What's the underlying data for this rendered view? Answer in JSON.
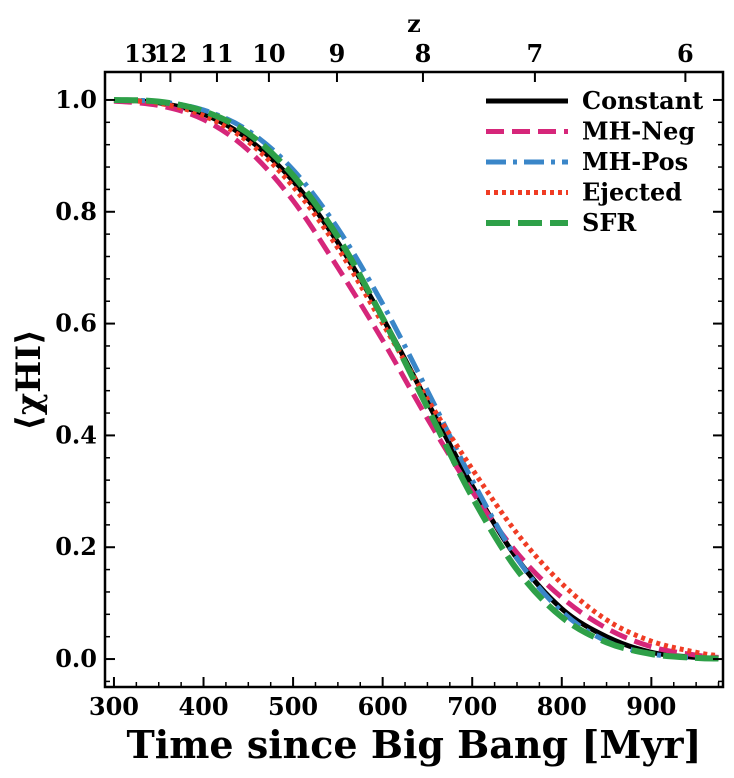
{
  "chart_data": {
    "type": "line",
    "title": "",
    "xlabel": "Time since Big Bang [Myr]",
    "ylabel": "⟨χHI⟩",
    "xlim": [
      290,
      980
    ],
    "ylim": [
      -0.05,
      1.05
    ],
    "xticks": [
      300,
      400,
      500,
      600,
      700,
      800,
      900
    ],
    "yticks": [
      0.0,
      0.2,
      0.4,
      0.6,
      0.8,
      1.0
    ],
    "ytick_labels": [
      "0.0",
      "0.2",
      "0.4",
      "0.6",
      "0.8",
      "1.0"
    ],
    "top_axis": {
      "label": "z",
      "ticks": [
        {
          "label": "13",
          "time": 330
        },
        {
          "label": "12",
          "time": 363
        },
        {
          "label": "11",
          "time": 415
        },
        {
          "label": "10",
          "time": 473
        },
        {
          "label": "9",
          "time": 549
        },
        {
          "label": "8",
          "time": 645
        },
        {
          "label": "7",
          "time": 770
        },
        {
          "label": "6",
          "time": 938
        }
      ]
    },
    "legend_position": "top-right",
    "series": [
      {
        "name": "Constant",
        "color": "#000000",
        "style": "solid",
        "x": [
          300,
          350,
          400,
          450,
          500,
          550,
          600,
          650,
          700,
          750,
          800,
          850,
          900,
          950,
          975
        ],
        "y": [
          1.0,
          0.995,
          0.975,
          0.93,
          0.855,
          0.745,
          0.61,
          0.46,
          0.31,
          0.18,
          0.09,
          0.04,
          0.012,
          0.003,
          0.001
        ]
      },
      {
        "name": "MH-Neg",
        "color": "#d6267a",
        "style": "dashed",
        "x": [
          300,
          350,
          400,
          450,
          500,
          550,
          600,
          650,
          700,
          750,
          800,
          850,
          900,
          950,
          975
        ],
        "y": [
          0.998,
          0.99,
          0.965,
          0.91,
          0.82,
          0.7,
          0.57,
          0.43,
          0.3,
          0.19,
          0.11,
          0.055,
          0.022,
          0.007,
          0.003
        ]
      },
      {
        "name": "MH-Pos",
        "color": "#3a86c8",
        "style": "dashdot",
        "x": [
          300,
          350,
          400,
          450,
          500,
          550,
          600,
          650,
          700,
          750,
          800,
          850,
          900,
          950,
          975
        ],
        "y": [
          1.0,
          0.997,
          0.982,
          0.945,
          0.875,
          0.77,
          0.635,
          0.48,
          0.32,
          0.18,
          0.085,
          0.032,
          0.009,
          0.002,
          0.001
        ]
      },
      {
        "name": "Ejected",
        "color": "#f03c24",
        "style": "dotted",
        "x": [
          300,
          350,
          400,
          450,
          500,
          550,
          600,
          650,
          700,
          750,
          800,
          850,
          900,
          950,
          975
        ],
        "y": [
          1.0,
          0.994,
          0.972,
          0.925,
          0.845,
          0.735,
          0.6,
          0.465,
          0.34,
          0.225,
          0.135,
          0.07,
          0.032,
          0.012,
          0.006
        ]
      },
      {
        "name": "SFR",
        "color": "#2ea048",
        "style": "longdash",
        "x": [
          300,
          350,
          400,
          450,
          500,
          550,
          600,
          650,
          700,
          750,
          800,
          850,
          900,
          950,
          975
        ],
        "y": [
          1.0,
          0.997,
          0.98,
          0.94,
          0.865,
          0.755,
          0.61,
          0.45,
          0.29,
          0.16,
          0.075,
          0.03,
          0.009,
          0.002,
          0.001
        ]
      }
    ]
  }
}
